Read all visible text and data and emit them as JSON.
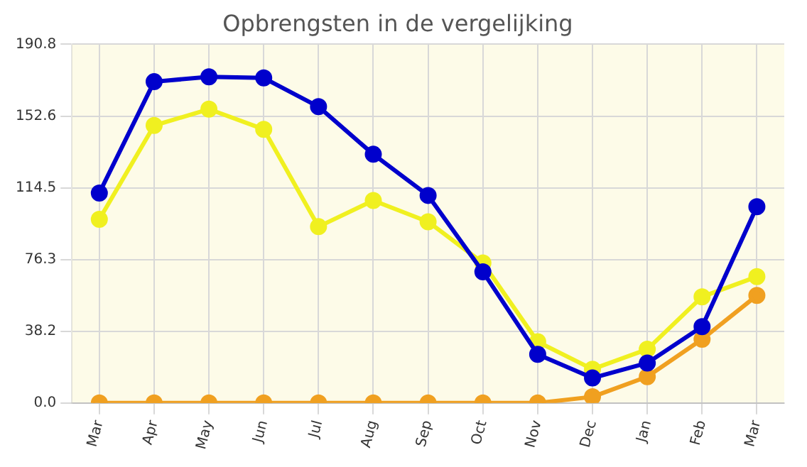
{
  "chart_data": {
    "type": "line",
    "title": "Opbrengsten in de vergelijking",
    "categories": [
      "Mar",
      "Apr",
      "May",
      "Jun",
      "Jul",
      "Aug",
      "Sep",
      "Oct",
      "Nov",
      "Dec",
      "Jan",
      "Feb",
      "Mar"
    ],
    "series": [
      {
        "color": "#0000cc",
        "values": [
          111.7,
          170.9,
          173.5,
          172.9,
          157.6,
          132.3,
          110.4,
          69.8,
          25.9,
          13.3,
          21.3,
          40.6,
          104.4
        ]
      },
      {
        "color": "#f0f020",
        "values": [
          97.7,
          147.6,
          156.3,
          145.6,
          93.8,
          107.7,
          96.4,
          74.5,
          32.6,
          18.0,
          28.6,
          56.5,
          67.2
        ]
      },
      {
        "color": "#f0a020",
        "values": [
          0,
          0,
          0,
          0,
          0,
          0,
          0,
          0,
          0,
          3.3,
          14.0,
          33.9,
          57.2
        ]
      }
    ],
    "ylim": [
      0,
      190.8
    ],
    "yticks": [
      {
        "value": 0,
        "label": "0.0"
      },
      38.2,
      76.3,
      114.5,
      152.6,
      190.8
    ],
    "grid": true,
    "legend": false,
    "marker": "circle",
    "line_style": "solid"
  }
}
